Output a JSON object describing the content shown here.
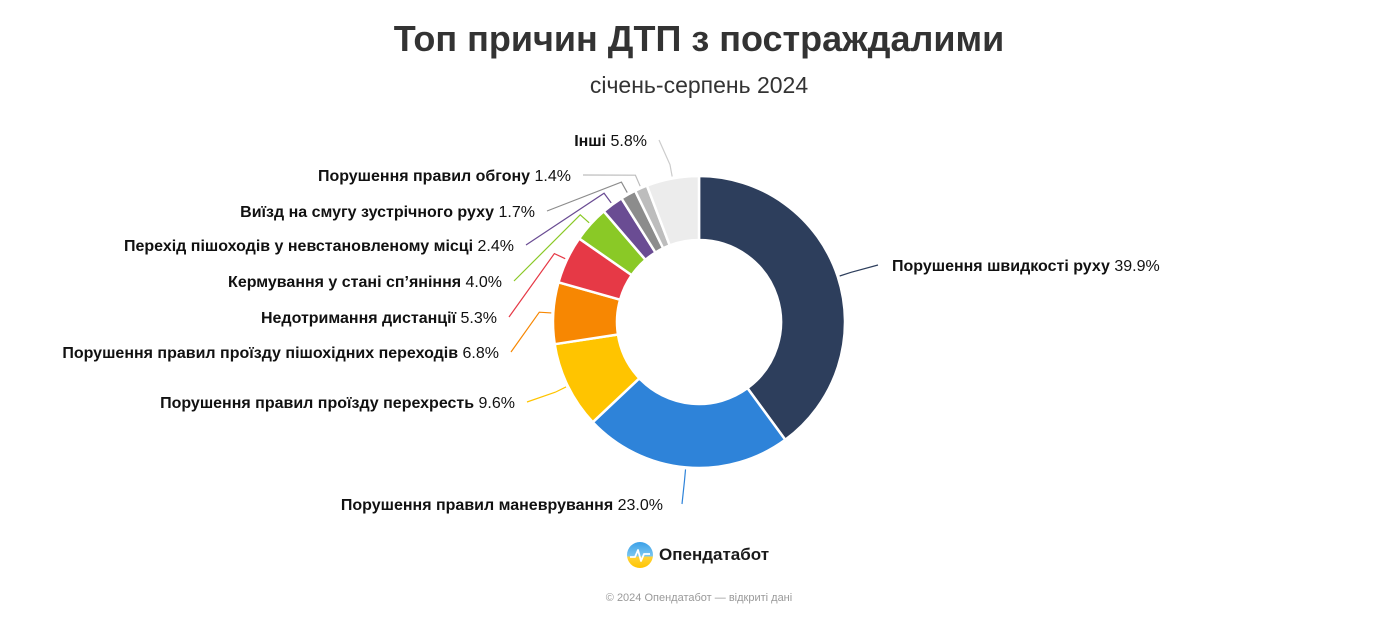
{
  "chart_data": {
    "type": "pie",
    "title": "Топ причин ДТП з постраждалими",
    "subtitle": "січень-серпень 2024",
    "slices": [
      {
        "label": "Порушення швидкості руху",
        "value": 39.9,
        "display": "39.9%",
        "color": "#2d3e5c"
      },
      {
        "label": "Порушення правил маневрування",
        "value": 23.0,
        "display": "23.0%",
        "color": "#2e83d9"
      },
      {
        "label": "Порушення правил проїзду перехресть",
        "value": 9.6,
        "display": "9.6%",
        "color": "#ffc400"
      },
      {
        "label": "Порушення правил проїзду пішохідних переходів",
        "value": 6.8,
        "display": "6.8%",
        "color": "#f78702"
      },
      {
        "label": "Недотримання дистанції",
        "value": 5.3,
        "display": "5.3%",
        "color": "#e63946"
      },
      {
        "label": "Кермування у стані сп’яніння",
        "value": 4.0,
        "display": "4.0%",
        "color": "#8ac926"
      },
      {
        "label": "Перехід пішоходів у невстановленому місці",
        "value": 2.4,
        "display": "2.4%",
        "color": "#6a4c93"
      },
      {
        "label": "Виїзд на смугу зустрічного руху",
        "value": 1.7,
        "display": "1.7%",
        "color": "#8c8c8c"
      },
      {
        "label": "Порушення правил обгону",
        "value": 1.4,
        "display": "1.4%",
        "color": "#bdbdbd"
      },
      {
        "label": "Інші",
        "value": 5.8,
        "display": "5.8%",
        "color": "#ececec"
      }
    ]
  },
  "brand": {
    "name": "Опендатабот",
    "logo_icon": "opendatabot-logo-icon"
  },
  "footer": {
    "text": "© 2024 Опендатабот — відкриті дані"
  }
}
